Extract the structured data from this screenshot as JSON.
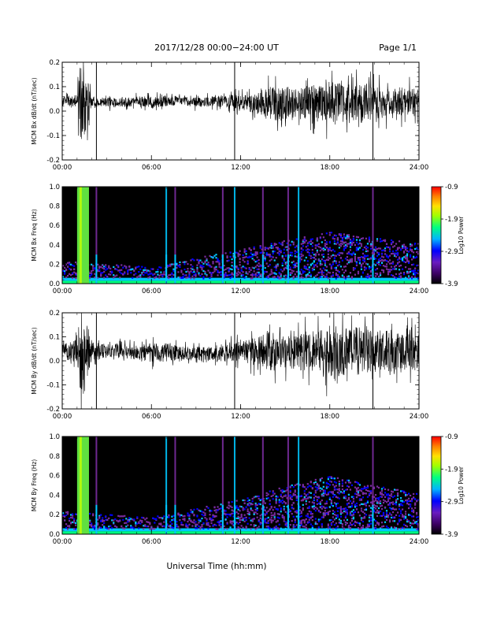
{
  "header": {
    "title": "2017/12/28   00:00−24:00 UT",
    "page": "Page 1/1"
  },
  "footer": {
    "xlabel": "Universal Time (hh:mm)"
  },
  "colors": {
    "trace": "#000000",
    "spectrogram_background": "#000000",
    "colormap": [
      "#1a0033",
      "#7a2ca0",
      "#0000ff",
      "#00c8ff",
      "#00ff80",
      "#c8ff00",
      "#ffd700",
      "#ff8c00",
      "#ff0000"
    ]
  },
  "chart_data": [
    {
      "type": "line",
      "title": "",
      "ylabel": "MCM Bx dB/dt (nT/sec)",
      "xlabel": "",
      "xlim": [
        "00:00",
        "24:00"
      ],
      "ylim": [
        -0.2,
        0.2
      ],
      "x_ticks": [
        "00:00",
        "06:00",
        "12:00",
        "18:00",
        "24:00"
      ],
      "y_ticks": [
        "-0.2",
        "-0.1",
        "0.0",
        "0.1",
        "0.2"
      ],
      "grid": false,
      "x_hours": [
        0,
        1,
        1.3,
        2,
        3,
        4,
        5,
        6,
        7,
        8,
        9,
        10,
        11,
        11.6,
        12,
        13,
        14,
        15,
        16,
        17,
        18,
        19,
        20,
        20.9,
        22,
        23,
        24
      ],
      "baseline": [
        0.04,
        0.04,
        0.04,
        0.04,
        0.035,
        0.035,
        0.04,
        0.035,
        0.04,
        0.045,
        0.035,
        0.04,
        0.04,
        0.04,
        0.035,
        0.03,
        0.03,
        0.03,
        0.035,
        0.035,
        0.03,
        0.03,
        0.03,
        0.035,
        0.035,
        0.04,
        0.04
      ],
      "noise_amplitude": [
        0.02,
        0.03,
        0.2,
        0.02,
        0.02,
        0.02,
        0.02,
        0.025,
        0.02,
        0.02,
        0.02,
        0.02,
        0.025,
        0.03,
        0.03,
        0.04,
        0.07,
        0.07,
        0.06,
        0.08,
        0.09,
        0.08,
        0.08,
        0.07,
        0.06,
        0.06,
        0.05
      ],
      "spikes_hours": [
        2.3,
        11.6,
        20.9
      ]
    },
    {
      "type": "heatmap",
      "title": "",
      "ylabel": "MCM Bx Freq (Hz)",
      "colorbar_label": "Log10 Power",
      "xlim": [
        "00:00",
        "24:00"
      ],
      "ylim": [
        0,
        1.0
      ],
      "x_ticks": [
        "00:00",
        "06:00",
        "12:00",
        "18:00",
        "24:00"
      ],
      "y_ticks": [
        "0.0",
        "0.2",
        "0.4",
        "0.6",
        "0.8",
        "1.0"
      ],
      "colorbar_range": [
        -3.9,
        -0.9
      ],
      "colorbar_ticks": [
        "-0.9",
        "-1.9",
        "-2.9",
        "-3.9"
      ],
      "broadband_bursts_hours": [
        1.1,
        1.4,
        2.3,
        7.0,
        7.6,
        10.8,
        11.6,
        13.5,
        15.2,
        15.9,
        20.9
      ],
      "strong_burst_hours": [
        1.0,
        1.8
      ],
      "activity_envelope": [
        {
          "x": 0,
          "fmax": 0.15
        },
        {
          "x": 6,
          "fmax": 0.1
        },
        {
          "x": 12,
          "fmax": 0.25
        },
        {
          "x": 16,
          "fmax": 0.35
        },
        {
          "x": 18,
          "fmax": 0.4
        },
        {
          "x": 24,
          "fmax": 0.3
        }
      ]
    },
    {
      "type": "line",
      "title": "",
      "ylabel": "MCM By dB/dt (nT/sec)",
      "xlabel": "",
      "xlim": [
        "00:00",
        "24:00"
      ],
      "ylim": [
        -0.2,
        0.2
      ],
      "x_ticks": [
        "00:00",
        "06:00",
        "12:00",
        "18:00",
        "24:00"
      ],
      "y_ticks": [
        "-0.2",
        "-0.1",
        "0.0",
        "0.1",
        "0.2"
      ],
      "grid": false,
      "x_hours": [
        0,
        1,
        1.3,
        2,
        3,
        4,
        5,
        6,
        7,
        8,
        9,
        10,
        11,
        11.6,
        12,
        13,
        14,
        15,
        16,
        17,
        18,
        19,
        20,
        20.9,
        22,
        23,
        24
      ],
      "baseline": [
        0.04,
        0.04,
        0.04,
        0.04,
        0.04,
        0.04,
        0.035,
        0.035,
        0.035,
        0.03,
        0.03,
        0.03,
        0.035,
        0.04,
        0.04,
        0.04,
        0.04,
        0.04,
        0.04,
        0.04,
        0.04,
        0.04,
        0.04,
        0.04,
        0.04,
        0.04,
        0.04
      ],
      "noise_amplitude": [
        0.03,
        0.05,
        0.22,
        0.04,
        0.03,
        0.03,
        0.03,
        0.04,
        0.04,
        0.03,
        0.03,
        0.03,
        0.04,
        0.04,
        0.04,
        0.06,
        0.08,
        0.07,
        0.08,
        0.09,
        0.11,
        0.1,
        0.1,
        0.09,
        0.09,
        0.08,
        0.08
      ],
      "spikes_hours": [
        2.3,
        11.6,
        20.9
      ]
    },
    {
      "type": "heatmap",
      "title": "",
      "ylabel": "MCM By Freq (Hz)",
      "colorbar_label": "Log10 Power",
      "xlim": [
        "00:00",
        "24:00"
      ],
      "ylim": [
        0,
        1.0
      ],
      "x_ticks": [
        "00:00",
        "06:00",
        "12:00",
        "18:00",
        "24:00"
      ],
      "y_ticks": [
        "0.0",
        "0.2",
        "0.4",
        "0.6",
        "0.8",
        "1.0"
      ],
      "colorbar_range": [
        -3.9,
        -0.9
      ],
      "colorbar_ticks": [
        "-0.9",
        "-1.9",
        "-2.9",
        "-3.9"
      ],
      "broadband_bursts_hours": [
        1.1,
        1.4,
        2.3,
        7.0,
        7.6,
        10.8,
        11.6,
        13.5,
        15.2,
        15.9,
        20.9
      ],
      "strong_burst_hours": [
        1.0,
        1.8
      ],
      "activity_envelope": [
        {
          "x": 0,
          "fmax": 0.15
        },
        {
          "x": 6,
          "fmax": 0.1
        },
        {
          "x": 12,
          "fmax": 0.25
        },
        {
          "x": 16,
          "fmax": 0.4
        },
        {
          "x": 18,
          "fmax": 0.45
        },
        {
          "x": 24,
          "fmax": 0.3
        }
      ]
    }
  ]
}
